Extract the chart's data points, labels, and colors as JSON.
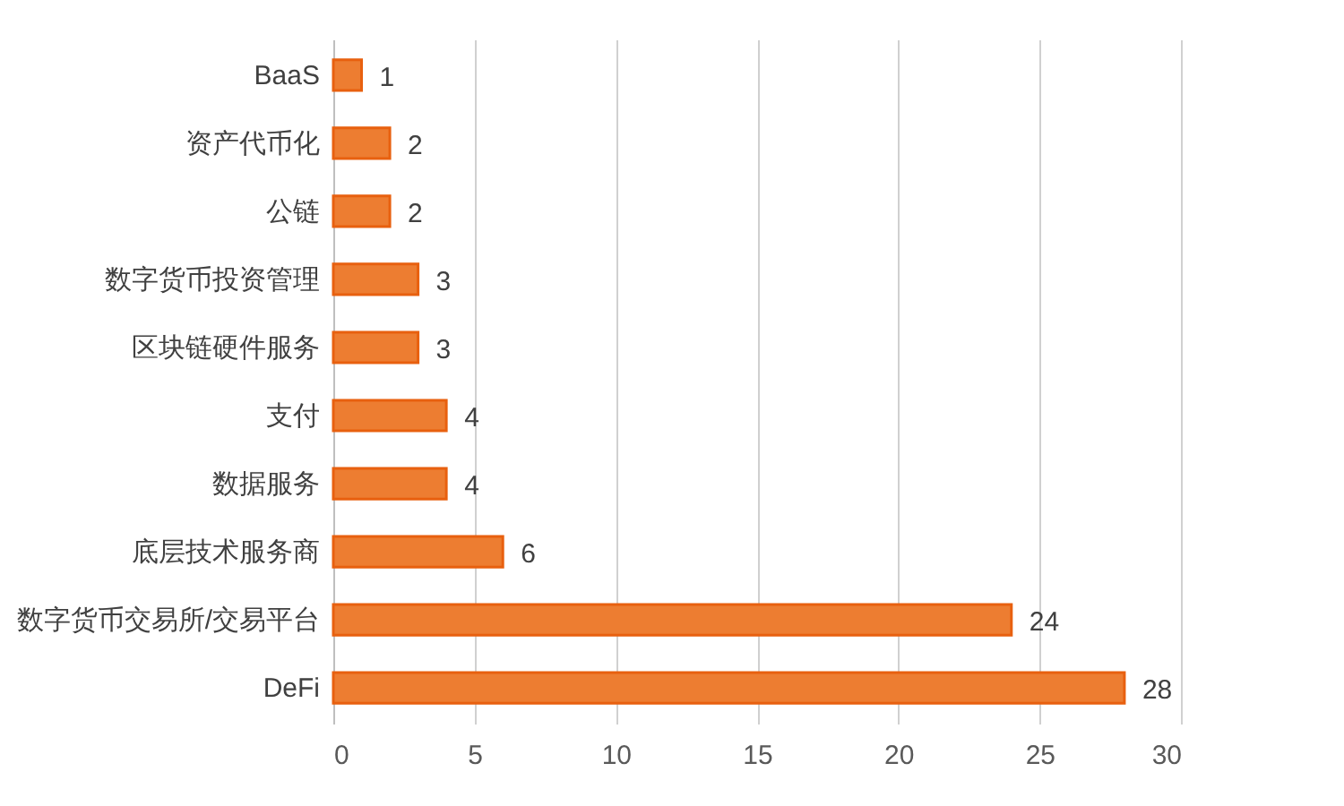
{
  "chart_data": {
    "type": "bar",
    "orientation": "horizontal",
    "categories": [
      "BaaS",
      "资产代币化",
      "公链",
      "数字货币投资管理",
      "区块链硬件服务",
      "支付",
      "数据服务",
      "底层技术服务商",
      "数字货币交易所/交易平台",
      "DeFi"
    ],
    "values": [
      1,
      2,
      2,
      3,
      3,
      4,
      4,
      6,
      24,
      28
    ],
    "color": "#ed7d31",
    "xlim": [
      0,
      30
    ],
    "xticks": [
      0,
      5,
      10,
      15,
      20,
      25,
      30
    ],
    "grid": "x",
    "data_labels": true
  }
}
